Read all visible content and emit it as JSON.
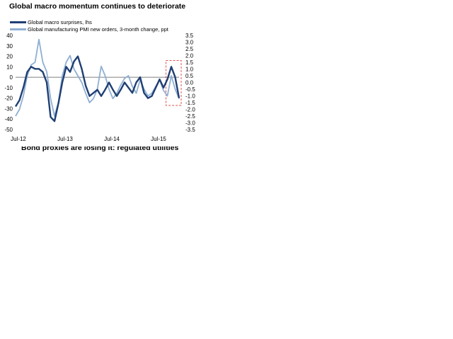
{
  "chart_data": {
    "type": "line",
    "title": "Global macro momentum continues to deteriorate",
    "subtitle_cut": "Bond proxies are losing it: regulated utilities",
    "x_ticks": [
      "Jul-12",
      "Jul-13",
      "Jul-14",
      "Jul-15"
    ],
    "x_range": [
      "Jul-12",
      "Jan-16"
    ],
    "ylim_left": [
      -50,
      40
    ],
    "yticks_left": [
      "40",
      "30",
      "20",
      "10",
      "0",
      "-10",
      "-20",
      "-30",
      "-40",
      "-50"
    ],
    "ylim_right": [
      -3.5,
      3.5
    ],
    "yticks_right": [
      "3.5",
      "3.0",
      "2.5",
      "2.0",
      "1.5",
      "1.0",
      "0.5",
      "0.0",
      "-0.5",
      "-1.0",
      "-1.5",
      "-2.0",
      "-2.5",
      "-3.0",
      "-3.5"
    ],
    "zero_line": true,
    "highlight_box": {
      "from": "2015-10",
      "to": "2016-01",
      "style": "red-dashed"
    },
    "series": [
      {
        "name": "Global macro surprises, lhs",
        "axis": "left",
        "color": "#1f3f73",
        "points": [
          [
            "2012-07",
            -28
          ],
          [
            "2012-08",
            -22
          ],
          [
            "2012-09",
            -10
          ],
          [
            "2012-10",
            5
          ],
          [
            "2012-11",
            10
          ],
          [
            "2012-12",
            8
          ],
          [
            "2013-01",
            8
          ],
          [
            "2013-02",
            5
          ],
          [
            "2013-03",
            -5
          ],
          [
            "2013-04",
            -38
          ],
          [
            "2013-05",
            -42
          ],
          [
            "2013-06",
            -25
          ],
          [
            "2013-07",
            -5
          ],
          [
            "2013-08",
            10
          ],
          [
            "2013-09",
            5
          ],
          [
            "2013-10",
            15
          ],
          [
            "2013-11",
            20
          ],
          [
            "2013-12",
            8
          ],
          [
            "2014-01",
            -8
          ],
          [
            "2014-02",
            -18
          ],
          [
            "2014-03",
            -15
          ],
          [
            "2014-04",
            -12
          ],
          [
            "2014-05",
            -18
          ],
          [
            "2014-06",
            -12
          ],
          [
            "2014-07",
            -5
          ],
          [
            "2014-08",
            -12
          ],
          [
            "2014-09",
            -18
          ],
          [
            "2014-10",
            -12
          ],
          [
            "2014-11",
            -5
          ],
          [
            "2014-12",
            -10
          ],
          [
            "2015-01",
            -15
          ],
          [
            "2015-02",
            -5
          ],
          [
            "2015-03",
            0
          ],
          [
            "2015-04",
            -15
          ],
          [
            "2015-05",
            -20
          ],
          [
            "2015-06",
            -18
          ],
          [
            "2015-07",
            -10
          ],
          [
            "2015-08",
            -2
          ],
          [
            "2015-09",
            -10
          ],
          [
            "2015-10",
            -2
          ],
          [
            "2015-11",
            10
          ],
          [
            "2015-12",
            0
          ],
          [
            "2016-01",
            -20
          ]
        ]
      },
      {
        "name": "Global manufacturing PMI new orders, 3-month change, ppt",
        "axis": "right",
        "color": "#8fafd3",
        "points": [
          [
            "2012-07",
            -2.5
          ],
          [
            "2012-08",
            -2.0
          ],
          [
            "2012-09",
            -1.0
          ],
          [
            "2012-10",
            0.5
          ],
          [
            "2012-11",
            1.3
          ],
          [
            "2012-12",
            1.5
          ],
          [
            "2013-01",
            3.2
          ],
          [
            "2013-02",
            1.5
          ],
          [
            "2013-03",
            0.8
          ],
          [
            "2013-04",
            -1.2
          ],
          [
            "2013-05",
            -2.5
          ],
          [
            "2013-06",
            -1.5
          ],
          [
            "2013-07",
            0.5
          ],
          [
            "2013-08",
            1.5
          ],
          [
            "2013-09",
            2.0
          ],
          [
            "2013-10",
            1.0
          ],
          [
            "2013-11",
            0.5
          ],
          [
            "2013-12",
            0.0
          ],
          [
            "2014-01",
            -0.8
          ],
          [
            "2014-02",
            -1.5
          ],
          [
            "2014-03",
            -1.2
          ],
          [
            "2014-04",
            -0.5
          ],
          [
            "2014-05",
            1.2
          ],
          [
            "2014-06",
            0.5
          ],
          [
            "2014-07",
            -0.5
          ],
          [
            "2014-08",
            -1.2
          ],
          [
            "2014-09",
            -0.8
          ],
          [
            "2014-10",
            -0.2
          ],
          [
            "2014-11",
            0.3
          ],
          [
            "2014-12",
            0.5
          ],
          [
            "2015-01",
            -0.3
          ],
          [
            "2015-02",
            -0.8
          ],
          [
            "2015-03",
            0.2
          ],
          [
            "2015-04",
            -0.5
          ],
          [
            "2015-05",
            -1.0
          ],
          [
            "2015-06",
            -0.8
          ],
          [
            "2015-07",
            -0.3
          ],
          [
            "2015-08",
            0.2
          ],
          [
            "2015-09",
            -0.6
          ],
          [
            "2015-10",
            -1.0
          ],
          [
            "2015-11",
            0.5
          ],
          [
            "2015-12",
            -0.5
          ],
          [
            "2016-01",
            -1.2
          ]
        ]
      }
    ]
  }
}
